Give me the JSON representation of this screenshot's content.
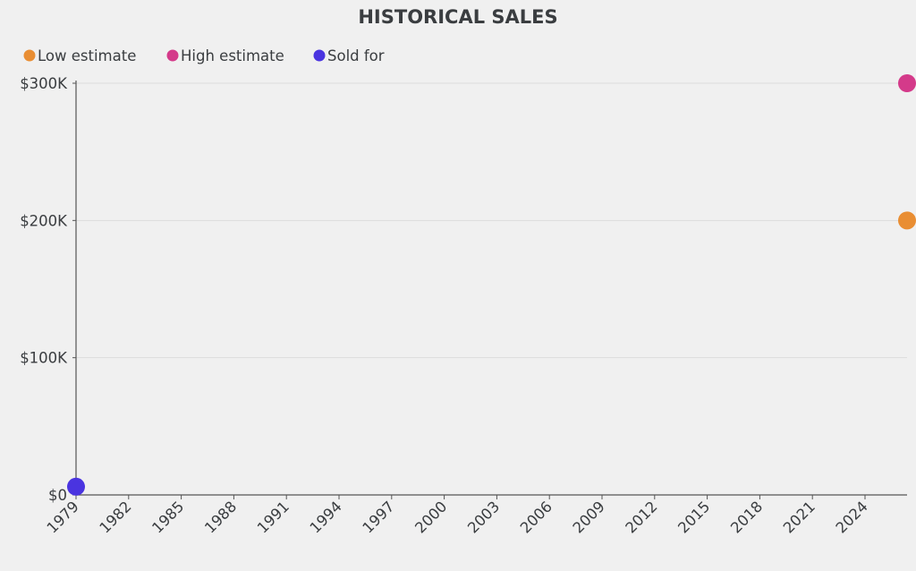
{
  "chart_data": {
    "type": "scatter",
    "title": "HISTORICAL SALES",
    "xlabel": "",
    "ylabel": "",
    "xlim": [
      1979,
      2026
    ],
    "ylim": [
      0,
      300000
    ],
    "x_ticks": [
      "1979",
      "1982",
      "1985",
      "1988",
      "1991",
      "1994",
      "1997",
      "2000",
      "2003",
      "2006",
      "2009",
      "2012",
      "2015",
      "2018",
      "2021",
      "2024"
    ],
    "y_ticks": [
      {
        "value": 0,
        "label": "$0"
      },
      {
        "value": 100000,
        "label": "$100K"
      },
      {
        "value": 200000,
        "label": "$200K"
      },
      {
        "value": 300000,
        "label": "$300K"
      }
    ],
    "grid": true,
    "legend_position": "top-left",
    "series": [
      {
        "name": "Low estimate",
        "color": "#e98e33",
        "points": [
          {
            "x": 2026,
            "y": 200000
          }
        ]
      },
      {
        "name": "High estimate",
        "color": "#d43a8a",
        "points": [
          {
            "x": 2026,
            "y": 300000
          }
        ]
      },
      {
        "name": "Sold for",
        "color": "#4a34e0",
        "points": [
          {
            "x": 1979,
            "y": 6000
          }
        ]
      }
    ]
  }
}
